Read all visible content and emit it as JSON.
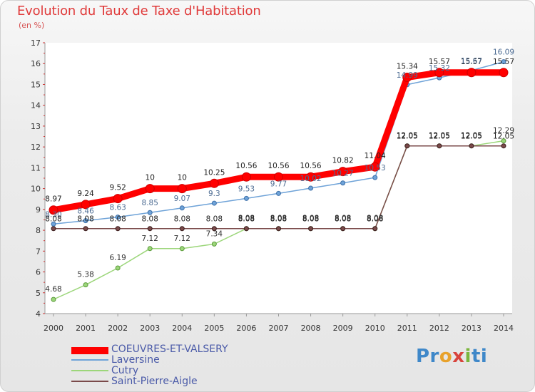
{
  "title": "Evolution du Taux de Taxe d'Habitation",
  "subtitle": "(en %)",
  "brand": [
    "Pr",
    "o",
    "x",
    "i",
    "ti"
  ],
  "chart_data": {
    "type": "line",
    "categories": [
      "2000",
      "2001",
      "2002",
      "2003",
      "2004",
      "2005",
      "2006",
      "2007",
      "2008",
      "2009",
      "2010",
      "2011",
      "2012",
      "2013",
      "2014"
    ],
    "yticks": [
      4,
      5,
      6,
      7,
      8,
      9,
      10,
      11,
      12,
      13,
      14,
      15,
      16,
      17
    ],
    "ylim": [
      4,
      17
    ],
    "grid": false,
    "legend_position": "bottom-left",
    "series": [
      {
        "name": "COEUVRES-ET-VALSERY",
        "color": "#ff0000",
        "values": [
          8.97,
          9.24,
          9.52,
          10,
          10,
          10.25,
          10.56,
          10.56,
          10.56,
          10.82,
          11.04,
          15.34,
          15.57,
          15.57,
          15.57
        ],
        "labels": [
          "8.97",
          "9.24",
          "9.52",
          "10",
          "10",
          "10.25",
          "10.56",
          "10.56",
          "10.56",
          "10.82",
          "11.04",
          "15.34",
          "15.57",
          "15.57",
          "15.57"
        ]
      },
      {
        "name": "Laversine",
        "color": "#6fa3d8",
        "values": [
          8.3,
          8.46,
          8.63,
          8.85,
          9.07,
          9.3,
          9.53,
          9.77,
          10.02,
          10.27,
          10.53,
          14.99,
          15.32,
          15.67,
          16.09
        ],
        "labels": [
          "8.30",
          "8.46",
          "8.63",
          "8.85",
          "9.07",
          "9.3",
          "9.53",
          "9.77",
          "10.02",
          "10.27",
          "10.53",
          "14.99",
          "15.32",
          "15.67",
          "16.09"
        ]
      },
      {
        "name": "Cutry",
        "color": "#9cd67a",
        "values": [
          4.68,
          5.38,
          6.19,
          7.12,
          7.12,
          7.34,
          8.08,
          8.08,
          8.08,
          8.08,
          8.08,
          12.05,
          12.05,
          12.05,
          12.29
        ],
        "labels": [
          "4.68",
          "5.38",
          "6.19",
          "7.12",
          "7.12",
          "7.34",
          "8.08",
          "8.08",
          "8.08",
          "8.08",
          "8.08",
          "12.05",
          "12.05",
          "12.05",
          "12.29"
        ]
      },
      {
        "name": "Saint-Pierre-Aigle",
        "color": "#7a4a4a",
        "values": [
          8.08,
          8.08,
          8.08,
          8.08,
          8.08,
          8.08,
          8.08,
          8.08,
          8.08,
          8.08,
          8.08,
          12.05,
          12.05,
          12.05,
          12.05
        ],
        "labels": [
          "8.08",
          "8.08",
          "8.08",
          "8.08",
          "8.08",
          "8.08",
          "8.08",
          "8.08",
          "8.08",
          "8.08",
          "8.08",
          "12.05",
          "12.05",
          "12.05",
          "12.05"
        ]
      }
    ]
  }
}
